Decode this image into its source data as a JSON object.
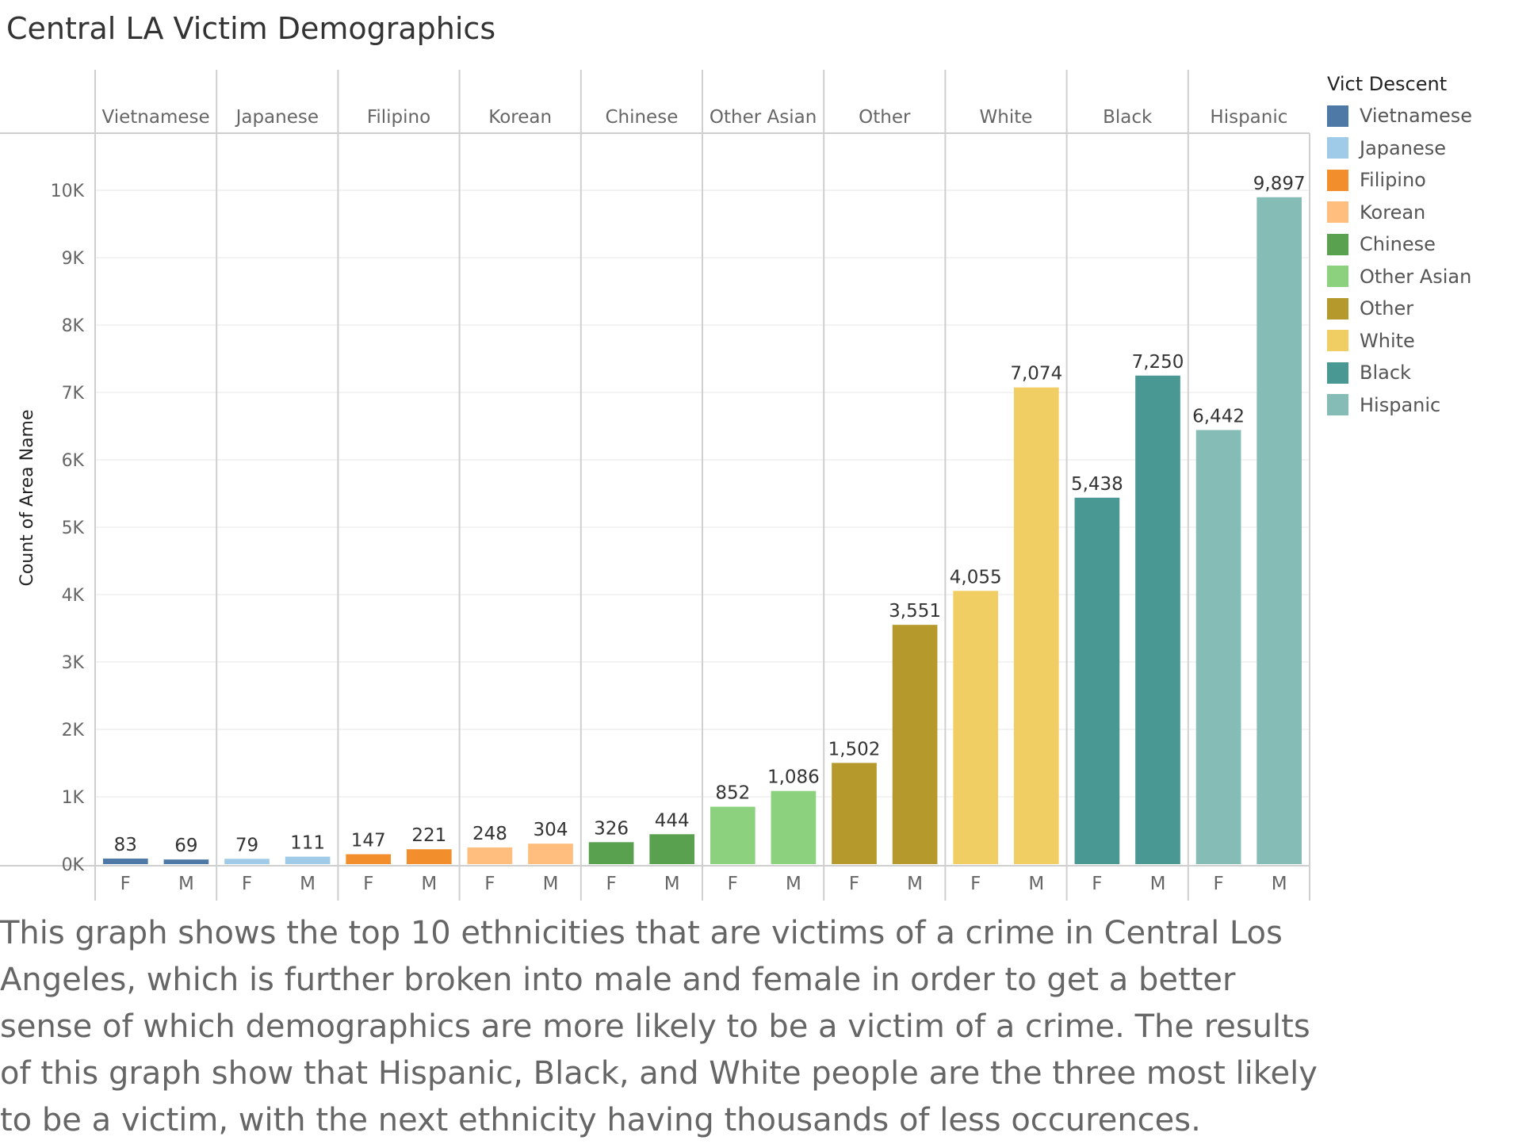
{
  "chart_data": {
    "type": "bar",
    "title": "Central LA Victim Demographics",
    "ylabel": "Count of Area Name",
    "xlabel": "",
    "ylim": [
      0,
      10800
    ],
    "yticks": [
      0,
      1000,
      2000,
      3000,
      4000,
      5000,
      6000,
      7000,
      8000,
      9000,
      10000
    ],
    "ytick_labels": [
      "0K",
      "1K",
      "2K",
      "3K",
      "4K",
      "5K",
      "6K",
      "7K",
      "8K",
      "9K",
      "10K"
    ],
    "sub_categories": [
      "F",
      "M"
    ],
    "grid": true,
    "legend_placement": "right",
    "groups": [
      {
        "name": "Vietnamese",
        "color": "#4e79a7",
        "values": [
          83,
          69
        ],
        "labels": [
          "83",
          "69"
        ]
      },
      {
        "name": "Japanese",
        "color": "#a0cbe8",
        "values": [
          79,
          111
        ],
        "labels": [
          "79",
          "111"
        ]
      },
      {
        "name": "Filipino",
        "color": "#f28e2b",
        "values": [
          147,
          221
        ],
        "labels": [
          "147",
          "221"
        ]
      },
      {
        "name": "Korean",
        "color": "#ffbe7d",
        "values": [
          248,
          304
        ],
        "labels": [
          "248",
          "304"
        ]
      },
      {
        "name": "Chinese",
        "color": "#59a14f",
        "values": [
          326,
          444
        ],
        "labels": [
          "326",
          "444"
        ]
      },
      {
        "name": "Other Asian",
        "color": "#8cd17d",
        "values": [
          852,
          1086
        ],
        "labels": [
          "852",
          "1,086"
        ]
      },
      {
        "name": "Other",
        "color": "#b6992d",
        "values": [
          1502,
          3551
        ],
        "labels": [
          "1,502",
          "3,551"
        ]
      },
      {
        "name": "White",
        "color": "#f1ce63",
        "values": [
          4055,
          7074
        ],
        "labels": [
          "4,055",
          "7,074"
        ]
      },
      {
        "name": "Black",
        "color": "#499894",
        "values": [
          5438,
          7250
        ],
        "labels": [
          "5,438",
          "7,250"
        ]
      },
      {
        "name": "Hispanic",
        "color": "#86bcb6",
        "values": [
          6442,
          9897
        ],
        "labels": [
          "6,442",
          "9,897"
        ]
      }
    ]
  },
  "legend": {
    "title": "Vict Descent",
    "items": [
      {
        "label": "Vietnamese",
        "color": "#4e79a7"
      },
      {
        "label": "Japanese",
        "color": "#a0cbe8"
      },
      {
        "label": "Filipino",
        "color": "#f28e2b"
      },
      {
        "label": "Korean",
        "color": "#ffbe7d"
      },
      {
        "label": "Chinese",
        "color": "#59a14f"
      },
      {
        "label": "Other Asian",
        "color": "#8cd17d"
      },
      {
        "label": "Other",
        "color": "#b6992d"
      },
      {
        "label": "White",
        "color": "#f1ce63"
      },
      {
        "label": "Black",
        "color": "#499894"
      },
      {
        "label": "Hispanic",
        "color": "#86bcb6"
      }
    ]
  },
  "caption": "This graph shows the top 10 ethnicities that are victims of a crime in Central Los Angeles, which is further broken into male and female in order to get a better sense of which demographics are more likely to be a victim of a crime. The results of this graph show that Hispanic, Black, and White people are the three most likely to be a victim, with the next ethnicity having thousands of less occurences."
}
